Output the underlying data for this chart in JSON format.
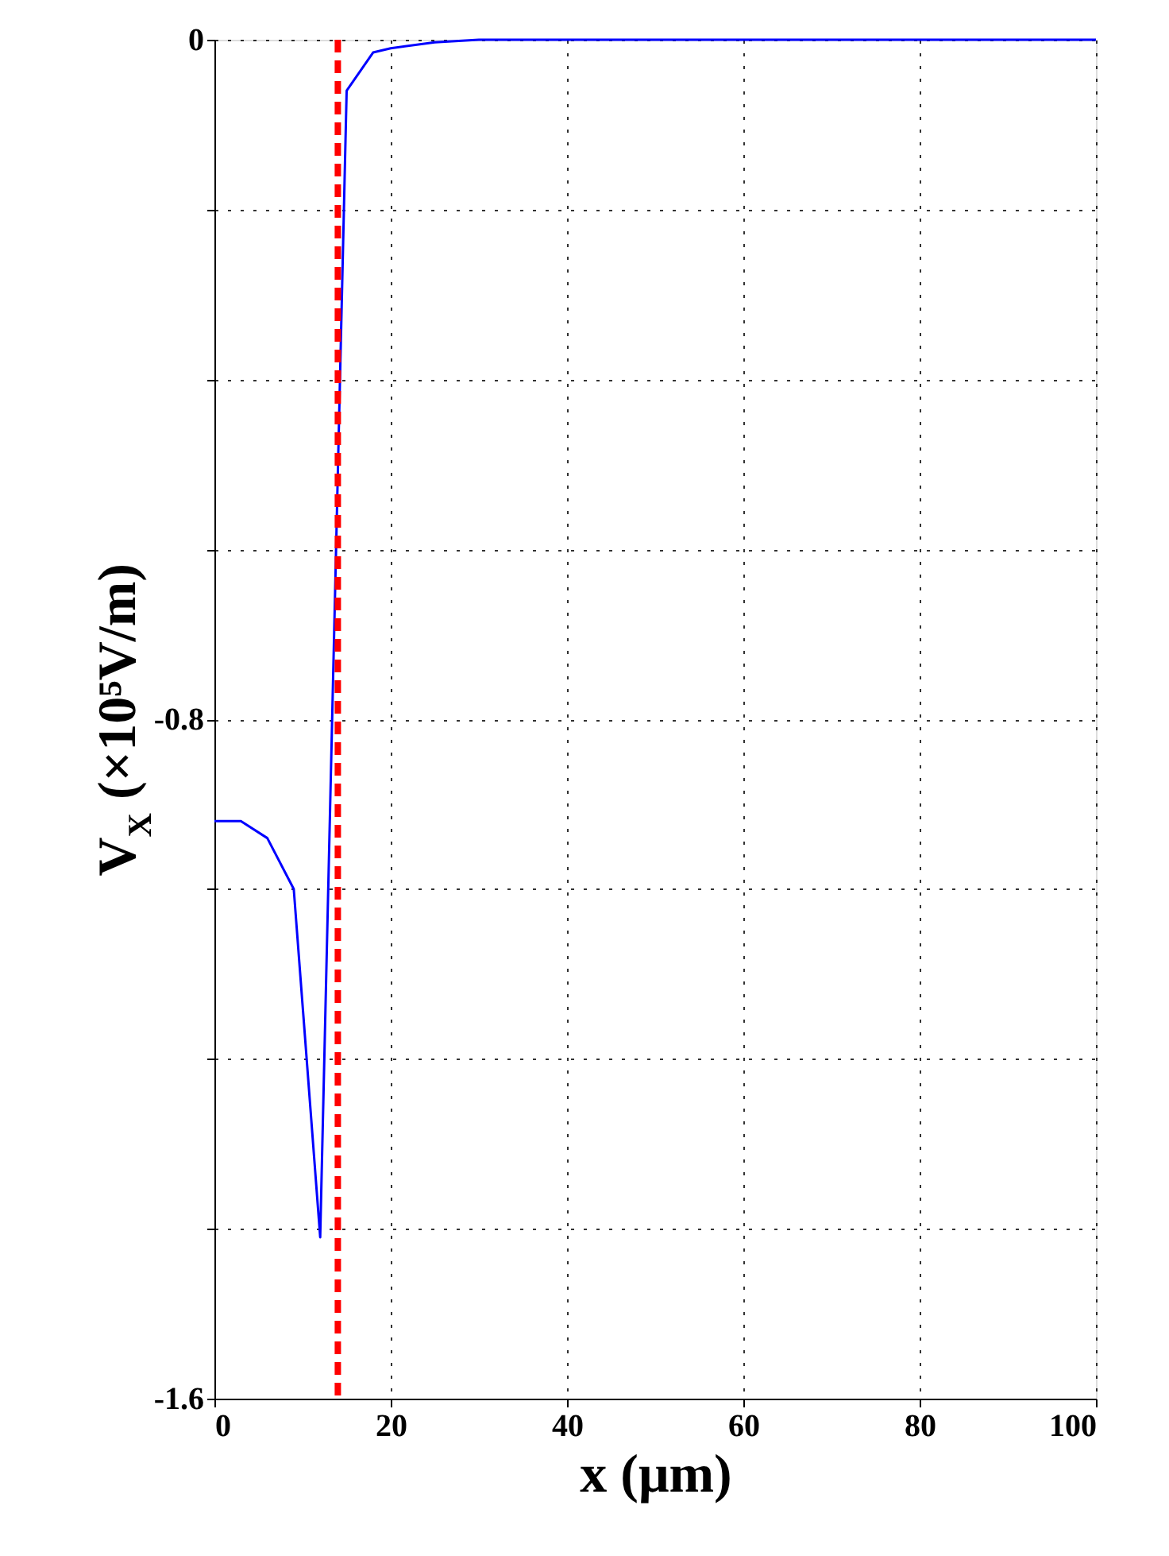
{
  "chart_data": {
    "type": "line",
    "xlabel": "x (μm)",
    "ylabel": "V$_{X}$ (×10⁵V/m)",
    "series": [
      {
        "color": "#0000ff",
        "x": [
          0,
          3,
          6,
          9,
          12,
          15,
          18,
          20,
          25,
          30,
          40,
          60,
          80,
          100
        ],
        "values": [
          -0.92,
          -0.92,
          -0.94,
          -1.0,
          -1.41,
          -0.06,
          -0.015,
          -0.01,
          -0.003,
          0,
          0,
          0,
          0,
          0
        ]
      }
    ],
    "xlim": [
      0,
      100
    ],
    "xticks": [
      0,
      20,
      40,
      60,
      80,
      100
    ],
    "ylim": [
      -1.6,
      0
    ],
    "yticks": [
      -1.6,
      {
        "value": -1.4,
        "label": null
      },
      {
        "value": -1.2,
        "label": null
      },
      {
        "value": -1.0,
        "label": null
      },
      -0.8,
      {
        "value": -0.6,
        "label": null
      },
      {
        "value": -0.4,
        "label": null
      },
      {
        "value": -0.2,
        "label": null
      },
      0
    ],
    "ref_lines": [
      {
        "axis": "x",
        "value": 14,
        "color": "#ff0000",
        "line_style": "dashed"
      }
    ],
    "grid": true,
    "line_style": "solid",
    "marker": "none"
  }
}
